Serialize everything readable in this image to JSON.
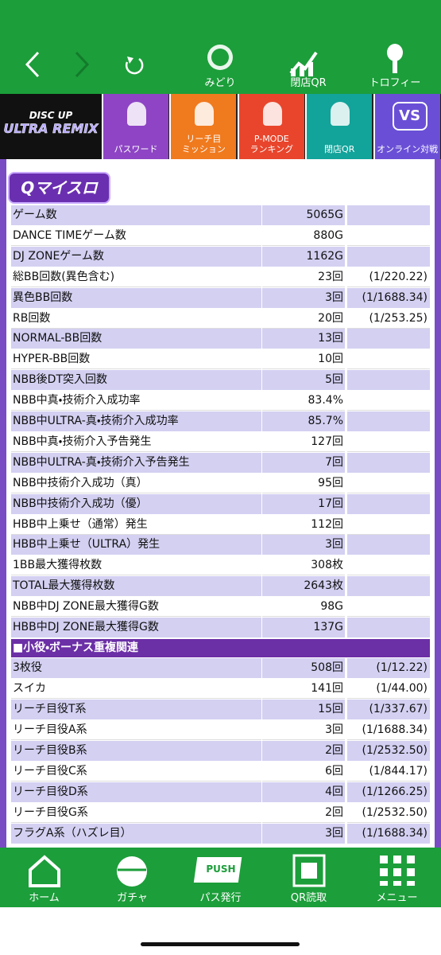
{
  "top_nav": {
    "items": [
      "みどり",
      "閉店QR",
      "トロフィー"
    ]
  },
  "game_logo": {
    "line1": "DISC UP",
    "line2": "ULTRA REMIX"
  },
  "menu": [
    {
      "label": "パスワード",
      "color": "#8e44c4"
    },
    {
      "label": "リーチ目\nミッション",
      "color": "#f07a1e"
    },
    {
      "label": "P-MODE\nランキング",
      "color": "#e8452c"
    },
    {
      "label": "閉店QR",
      "color": "#12a39a"
    },
    {
      "label": "オンライン対戦",
      "color": "#6a4fd6",
      "badge": "VS"
    }
  ],
  "brand": "Qマイスロ",
  "table": {
    "rows": [
      {
        "label": "ゲーム数",
        "value": "5065G"
      },
      {
        "label": "DANCE TIMEゲーム数",
        "value": "880G"
      },
      {
        "label": "DJ ZONEゲーム数",
        "value": "1162G"
      },
      {
        "label": "総BB回数(異色含む)",
        "value": "23回",
        "ratio": "(1/220.22)"
      },
      {
        "label": "異色BB回数",
        "value": "3回",
        "ratio": "(1/1688.34)"
      },
      {
        "label": "RB回数",
        "value": "20回",
        "ratio": "(1/253.25)"
      },
      {
        "label": "NORMAL-BB回数",
        "value": "13回"
      },
      {
        "label": "HYPER-BB回数",
        "value": "10回"
      },
      {
        "label": "NBB後DT突入回数",
        "value": "5回"
      },
      {
        "label": "NBB中真・技術介入成功率",
        "value": "83.4%"
      },
      {
        "label": "NBB中ULTRA-真・技術介入成功率",
        "value": "85.7%"
      },
      {
        "label": "NBB中真・技術介入予告発生",
        "value": "127回"
      },
      {
        "label": "NBB中ULTRA-真・技術介入予告発生",
        "value": "7回"
      },
      {
        "label": "NBB中技術介入成功（真）",
        "value": "95回"
      },
      {
        "label": "NBB中技術介入成功（優）",
        "value": "17回"
      },
      {
        "label": "HBB中上乗せ（通常）発生",
        "value": "112回"
      },
      {
        "label": "HBB中上乗せ（ULTRA）発生",
        "value": "3回"
      },
      {
        "label": "1BB最大獲得枚数",
        "value": "308枚"
      },
      {
        "label": "TOTAL最大獲得枚数",
        "value": "2643枚"
      },
      {
        "label": "NBB中DJ ZONE最大獲得G数",
        "value": "98G"
      },
      {
        "label": "HBB中DJ ZONE最大獲得G数",
        "value": "137G"
      }
    ],
    "section": "■小役・ボーナス重複関連",
    "section_rows": [
      {
        "label": "3枚役",
        "value": "508回",
        "ratio": "(1/12.22)"
      },
      {
        "label": "スイカ",
        "value": "141回",
        "ratio": "(1/44.00)"
      },
      {
        "label": "リーチ目役T系",
        "value": "15回",
        "ratio": "(1/337.67)"
      },
      {
        "label": "リーチ目役A系",
        "value": "3回",
        "ratio": "(1/1688.34)"
      },
      {
        "label": "リーチ目役B系",
        "value": "2回",
        "ratio": "(1/2532.50)"
      },
      {
        "label": "リーチ目役C系",
        "value": "6回",
        "ratio": "(1/844.17)"
      },
      {
        "label": "リーチ目役D系",
        "value": "4回",
        "ratio": "(1/1266.25)"
      },
      {
        "label": "リーチ目役G系",
        "value": "2回",
        "ratio": "(1/2532.50)"
      },
      {
        "label": "フラグA系（ハズレ目）",
        "value": "3回",
        "ratio": "(1/1688.34)"
      }
    ]
  },
  "bottom_nav": {
    "push_badge": "PUSH",
    "items": [
      "ホーム",
      "ガチャ",
      "パス発行",
      "QR読取",
      "メニュー"
    ]
  }
}
